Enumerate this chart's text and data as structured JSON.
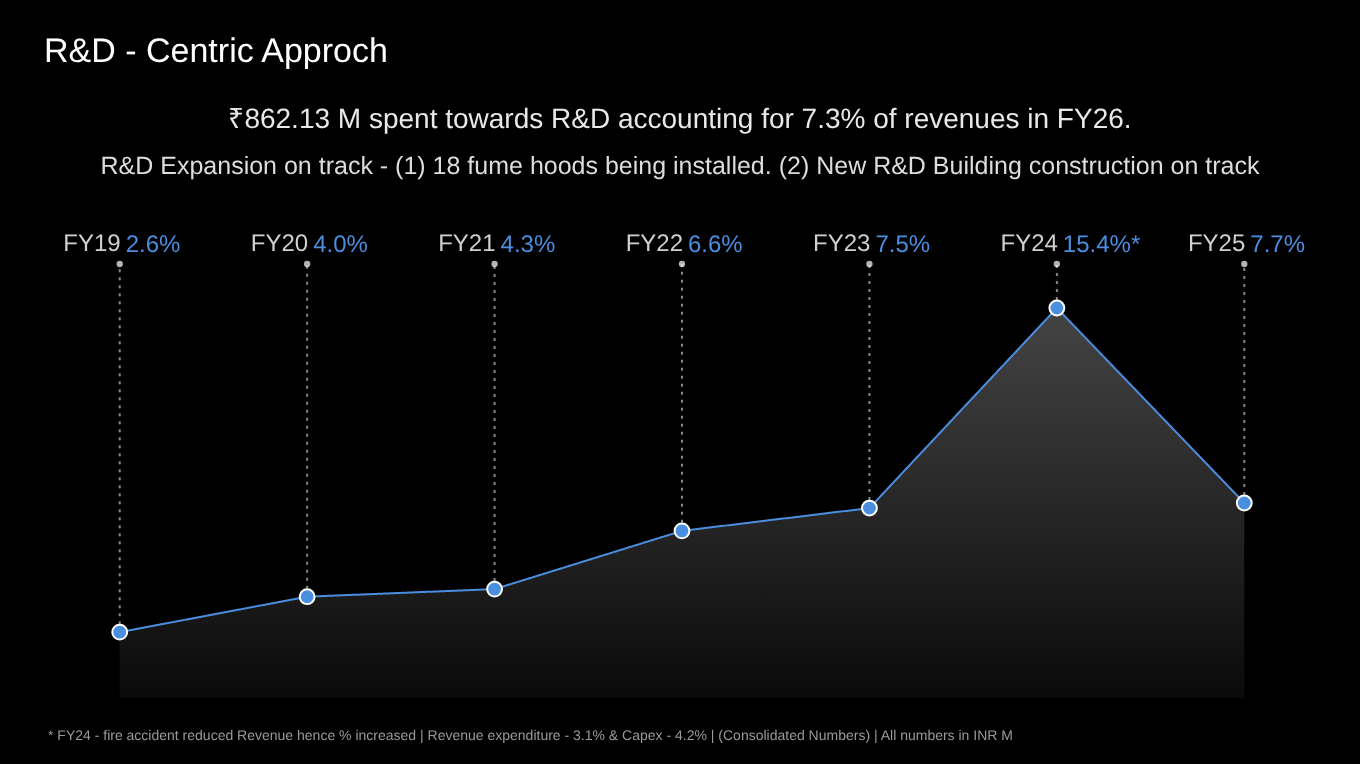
{
  "chart_data": {
    "type": "area",
    "title": "R&D - Centric Approch",
    "subtitle": "₹862.13 M spent towards R&D accounting for 7.3% of revenues in FY26.",
    "annotations": [
      "R&D Expansion on track - (1) 18 fume hoods being installed. (2) New R&D Building construction on track",
      "* FY24 - fire accident reduced Revenue hence % increased | Revenue expenditure - 3.1% & Capex - 4.2% | (Consolidated Numbers) | All numbers in INR M"
    ],
    "categories": [
      "FY19",
      "FY20",
      "FY21",
      "FY22",
      "FY23",
      "FY24",
      "FY25"
    ],
    "series": [
      {
        "color": "#4a8ee0",
        "values": [
          2.6,
          4.0,
          4.3,
          6.6,
          7.5,
          15.4,
          7.7
        ],
        "value_labels": [
          "2.6%",
          "4.0%",
          "4.3%",
          "6.6%",
          "7.5%",
          "15.4%*",
          "7.7%"
        ]
      }
    ],
    "marker": "circle",
    "grid": false
  }
}
